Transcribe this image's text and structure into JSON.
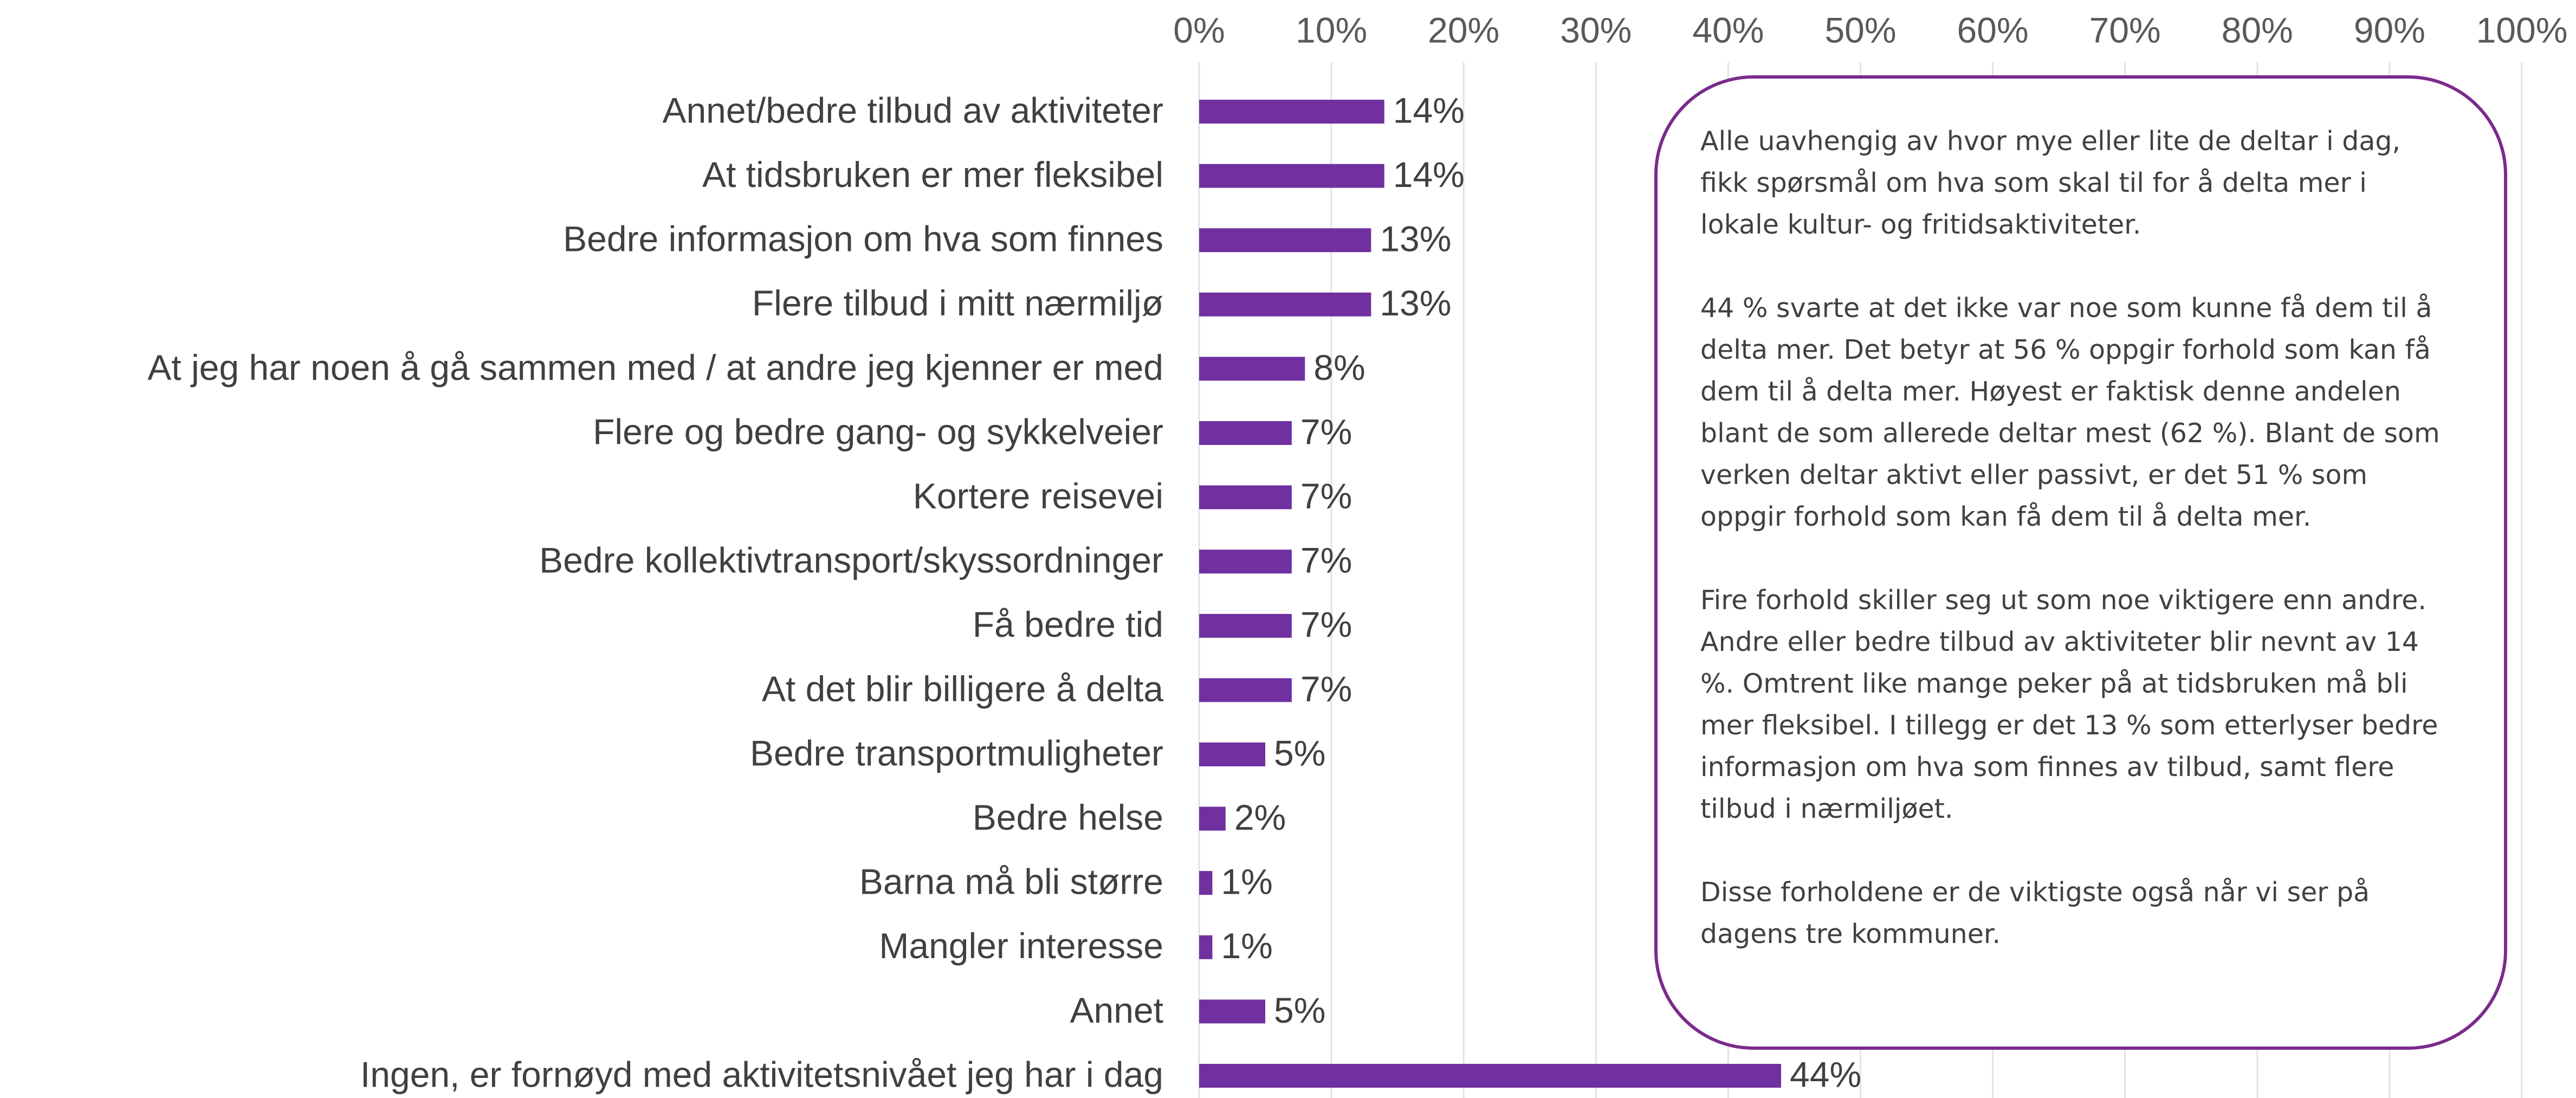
{
  "chart_data": {
    "type": "bar",
    "orientation": "horizontal",
    "categories": [
      "Annet/bedre tilbud av aktiviteter",
      "At tidsbruken er mer fleksibel",
      "Bedre informasjon om hva som finnes",
      "Flere tilbud i mitt nærmiljø",
      "At jeg har noen å gå sammen med / at andre jeg kjenner er med",
      "Flere og bedre gang- og sykkelveier",
      "Kortere reisevei",
      "Bedre kollektivtransport/skyssordninger",
      "Få bedre tid",
      "At det blir billigere å delta",
      "Bedre transportmuligheter",
      "Bedre helse",
      "Barna må bli større",
      "Mangler interesse",
      "Annet",
      "Ingen, er fornøyd med aktivitetsnivået jeg har i dag"
    ],
    "values": [
      14,
      14,
      13,
      13,
      8,
      7,
      7,
      7,
      7,
      7,
      5,
      2,
      1,
      1,
      5,
      44
    ],
    "value_labels": [
      "14%",
      "14%",
      "13%",
      "13%",
      "8%",
      "7%",
      "7%",
      "7%",
      "7%",
      "7%",
      "5%",
      "2%",
      "1%",
      "1%",
      "5%",
      "44%"
    ],
    "color": "#7030a0",
    "xlim": [
      0,
      100
    ],
    "xticks": [
      {
        "value": 0,
        "label": "0%"
      },
      {
        "value": 10,
        "label": "10%"
      },
      {
        "value": 20,
        "label": "20%"
      },
      {
        "value": 30,
        "label": "30%"
      },
      {
        "value": 40,
        "label": "40%"
      },
      {
        "value": 50,
        "label": "50%"
      },
      {
        "value": 60,
        "label": "60%"
      },
      {
        "value": 70,
        "label": "70%"
      },
      {
        "value": 80,
        "label": "80%"
      },
      {
        "value": 90,
        "label": "90%"
      },
      {
        "value": 100,
        "label": "100%"
      }
    ],
    "grid": true,
    "annotation": [
      "Alle uavhengig av hvor mye eller lite de deltar i dag, fikk spørsmål om hva som skal til for å delta mer i lokale kultur- og fritidsaktiviteter.",
      "44 % svarte at det ikke var noe som kunne få dem til å delta mer. Det betyr at 56 % oppgir forhold som kan få dem til å delta mer. Høyest er faktisk denne andelen blant de som allerede deltar mest (62 %). Blant de som verken deltar aktivt eller passivt, er det 51 % som oppgir forhold som kan få dem til å delta mer.",
      "Fire forhold skiller seg ut som noe viktigere enn andre. Andre eller bedre tilbud av aktiviteter blir nevnt av 14 %. Omtrent like mange peker på at tidsbruken må bli mer fleksibel. I tillegg er det 13 % som etterlyser bedre informasjon om hva som finnes av tilbud, samt flere tilbud i nærmiljøet.",
      "Disse forholdene er de viktigste også når vi ser på dagens tre kommuner."
    ]
  }
}
